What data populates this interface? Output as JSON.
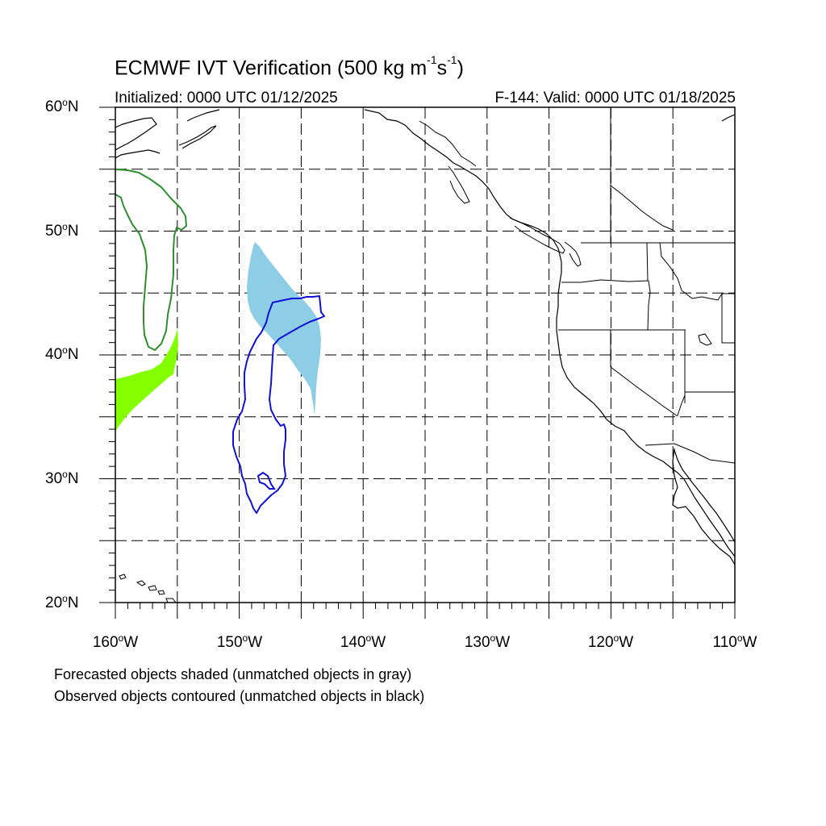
{
  "title": {
    "main_prefix": "ECMWF IVT Verification (500 kg m",
    "exp1": "-1",
    "mid": "s",
    "exp2": "-1",
    "suffix": ")"
  },
  "initialized": "Initialized: 0000 UTC 01/12/2025",
  "valid": "F-144: Valid: 0000 UTC 01/18/2025",
  "axes": {
    "lat_labels": [
      {
        "num": "60",
        "hemi": "N"
      },
      {
        "num": "50",
        "hemi": "N"
      },
      {
        "num": "40",
        "hemi": "N"
      },
      {
        "num": "30",
        "hemi": "N"
      },
      {
        "num": "20",
        "hemi": "N"
      }
    ],
    "lon_labels": [
      {
        "num": "160",
        "hemi": "W"
      },
      {
        "num": "150",
        "hemi": "W"
      },
      {
        "num": "140",
        "hemi": "W"
      },
      {
        "num": "130",
        "hemi": "W"
      },
      {
        "num": "120",
        "hemi": "W"
      },
      {
        "num": "110",
        "hemi": "W"
      }
    ],
    "lat_range": [
      20,
      60
    ],
    "lon_range": [
      -160,
      -110
    ],
    "grid_spacing_deg": 5,
    "grid": "dashed"
  },
  "objects": {
    "forecast_matched_color": "#8ecde6",
    "forecast_other_color": "#84ff00",
    "observed_matched_color": "#1010dd",
    "observed_other_color": "#2f8f2f"
  },
  "footnotes": {
    "line1": "Forecasted objects shaded (unmatched objects in gray)",
    "line2": "Observed objects contoured (unmatched objects in black)"
  }
}
